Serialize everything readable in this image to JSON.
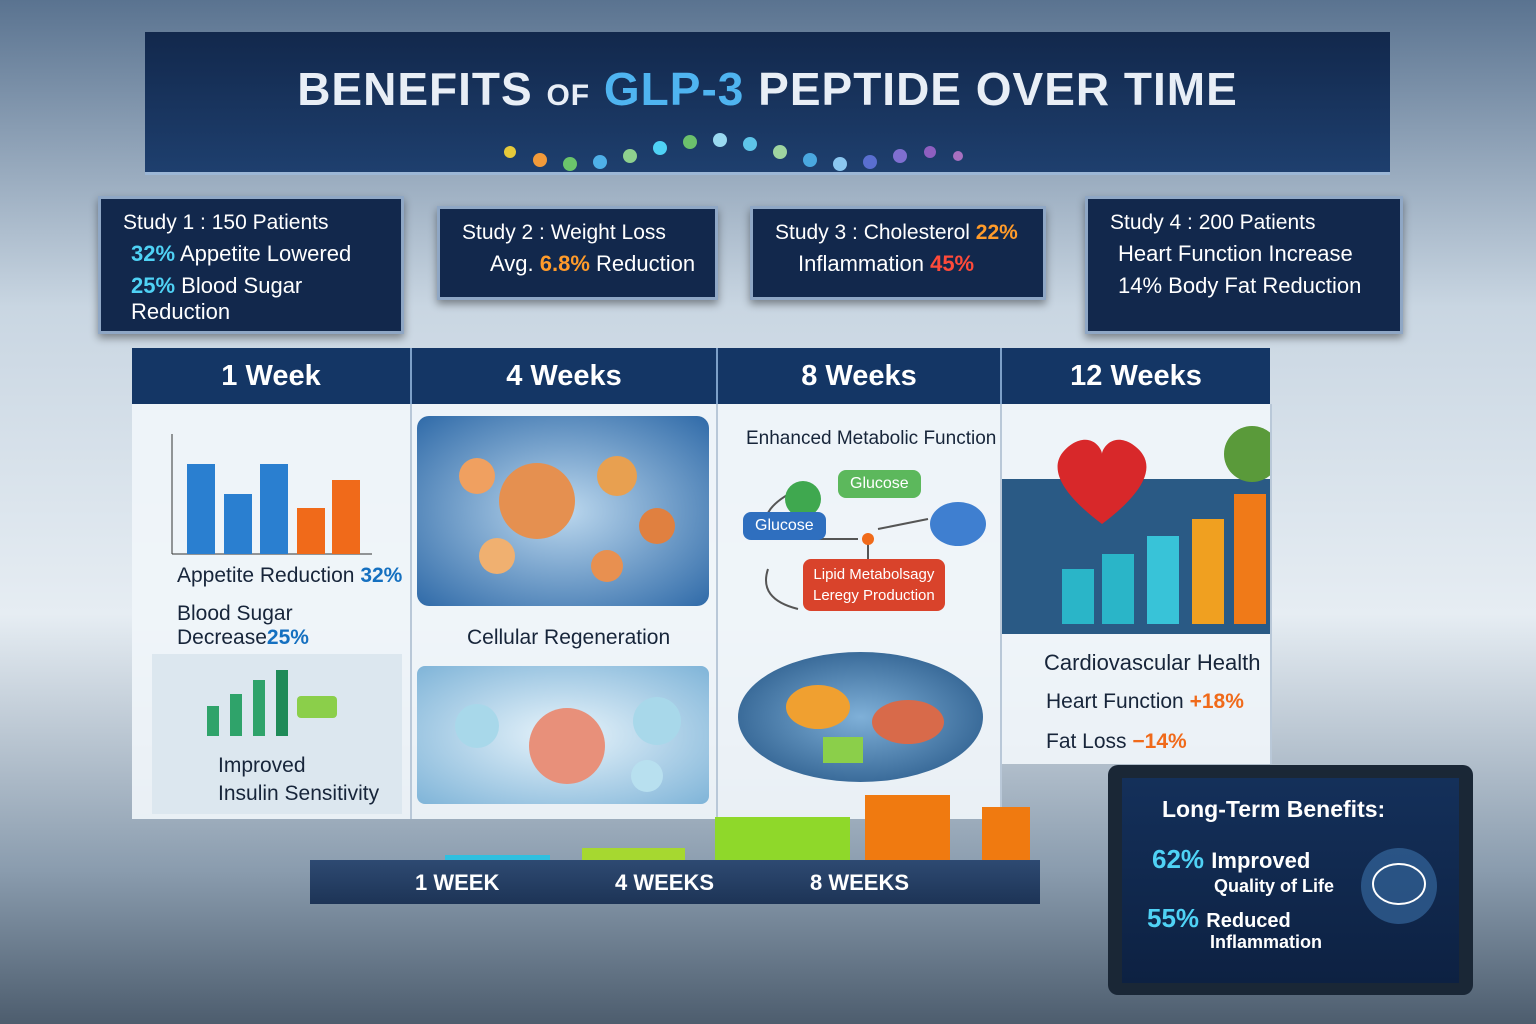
{
  "title": [
    "BENEFITS",
    "OF",
    "GLP-3",
    "PEPTIDE OVER TIME"
  ],
  "studies": [
    {
      "heading": "Study 1 : 150 Patients",
      "lines": [
        {
          "num": "32%",
          "post": "Appetite Lowered"
        },
        {
          "num": "25%",
          "post": "Blood Sugar Reduction"
        }
      ]
    },
    {
      "heading": "Study 2 : Weight Loss",
      "lines": [
        {
          "pre": "Avg.",
          "num": "6.8%",
          "post": "Reduction"
        }
      ]
    },
    {
      "heading": "Study 3 : Cholesterol",
      "heading_num": "22%",
      "lines": [
        {
          "pre": "Inflammation",
          "num": "45%"
        }
      ]
    },
    {
      "heading": "Study 4 : 200 Patients",
      "lines": [
        {
          "pre": "Heart Function Increase"
        },
        {
          "num": "14%",
          "post": "Body Fat Reduction"
        }
      ]
    }
  ],
  "columns": [
    "1 Week",
    "4 Weeks",
    "8 Weeks",
    "12 Weeks"
  ],
  "week1": {
    "stats": [
      {
        "label": "Appetite Reduction",
        "num": "32%"
      },
      {
        "label": "Blood Sugar Decrease",
        "num": "25%"
      }
    ],
    "caption": [
      "Improved",
      "Insulin Sensitivity"
    ]
  },
  "week4": {
    "caption": "Cellular Regeneration"
  },
  "week8": {
    "caption": "Enhanced Metabolic Function",
    "nodes": [
      "Glucose",
      "Glucose",
      "Lipid Metabolsagy",
      "Leregy Production"
    ]
  },
  "week12": {
    "caption": "Cardiovascular Health",
    "stats": [
      {
        "label": "Heart Function",
        "num": "+18%"
      },
      {
        "label": "Fat Loss",
        "num": "−14%"
      }
    ]
  },
  "timeline": [
    "1 WEEK",
    "4 WEEKS",
    "8 WEEKS"
  ],
  "laptop": {
    "heading": "Long-Term Benefits:",
    "items": [
      {
        "num": "62%",
        "lines": [
          "Improved",
          "Quality of Life"
        ]
      },
      {
        "num": "55%",
        "lines": [
          "Reduced",
          "Inflammation"
        ]
      }
    ]
  }
}
